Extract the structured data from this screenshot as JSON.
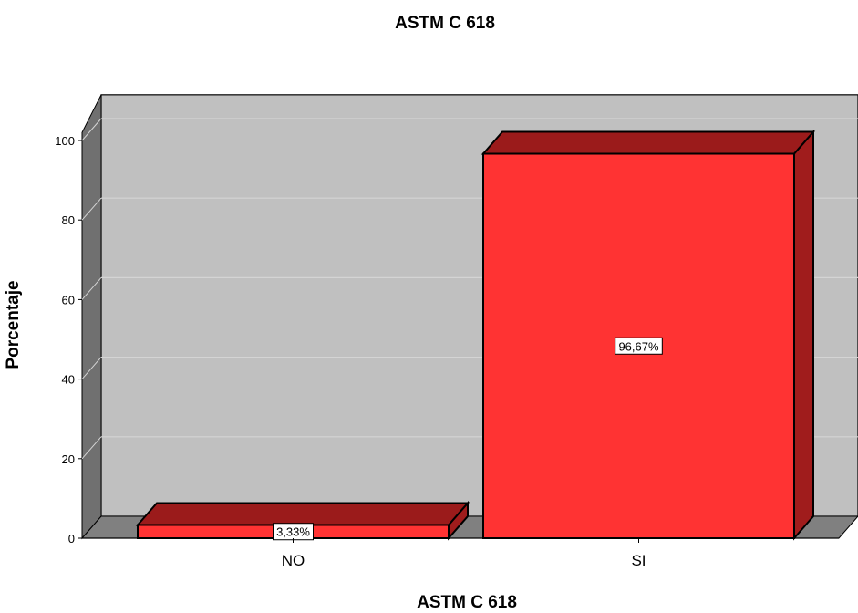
{
  "chart_data": {
    "type": "bar",
    "title": "ASTM C 618",
    "xlabel": "ASTM C 618",
    "ylabel": "Porcentaje",
    "categories": [
      "NO",
      "SI"
    ],
    "values": [
      3.33,
      96.67
    ],
    "data_labels": [
      "3,33%",
      "96,67%"
    ],
    "ylim": [
      0,
      100
    ],
    "yticks": [
      0,
      20,
      40,
      60,
      80,
      100
    ],
    "ytick_labels": [
      "0",
      "20",
      "40",
      "60",
      "80",
      "100"
    ],
    "grid": true,
    "legend": "none",
    "style": "3d",
    "colors": {
      "bar_front": "#ff3333",
      "bar_top": "#9b1b1b",
      "bar_side": "#a01c1c",
      "wall": "#c0c0c0",
      "side_wall": "#707070",
      "floor": "#808080",
      "grid": "#d4d4d4"
    }
  }
}
